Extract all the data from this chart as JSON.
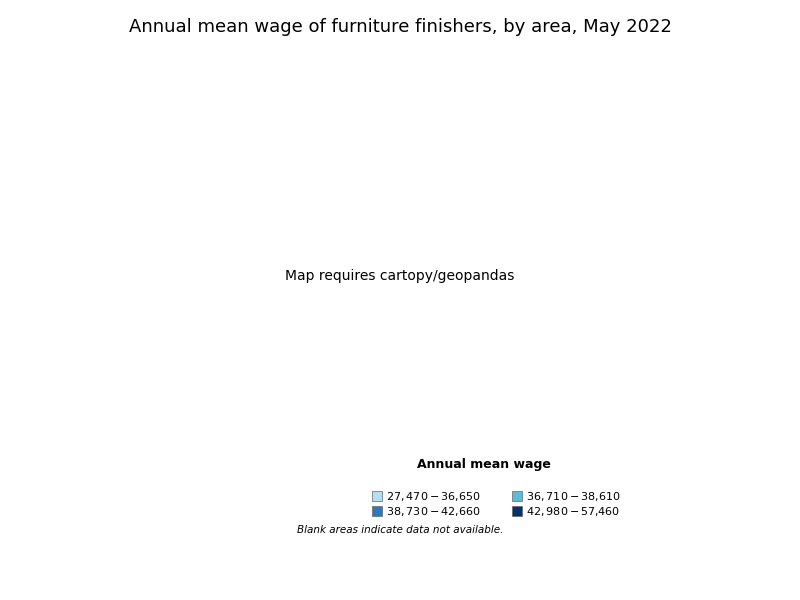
{
  "title": "Annual mean wage of furniture finishers, by area, May 2022",
  "legend_title": "Annual mean wage",
  "legend_items": [
    {
      "label": "$27,470 - $36,650",
      "color": "#b3e0f0"
    },
    {
      "label": "$36,710 - $38,610",
      "color": "#5bbcd6"
    },
    {
      "label": "$38,730 - $42,660",
      "color": "#2b7bba"
    },
    {
      "label": "$42,980 - $57,460",
      "color": "#08306b"
    }
  ],
  "blank_note": "Blank areas indicate data not available.",
  "background_color": "#ffffff",
  "title_fontsize": 13,
  "legend_title_fontsize": 9,
  "legend_fontsize": 8,
  "note_fontsize": 7.5,
  "border_color": "#333333",
  "state_border_color": "#111111",
  "border_linewidth": 0.25,
  "state_linewidth": 0.6,
  "figsize": [
    8.0,
    6.0
  ],
  "dpi": 100
}
